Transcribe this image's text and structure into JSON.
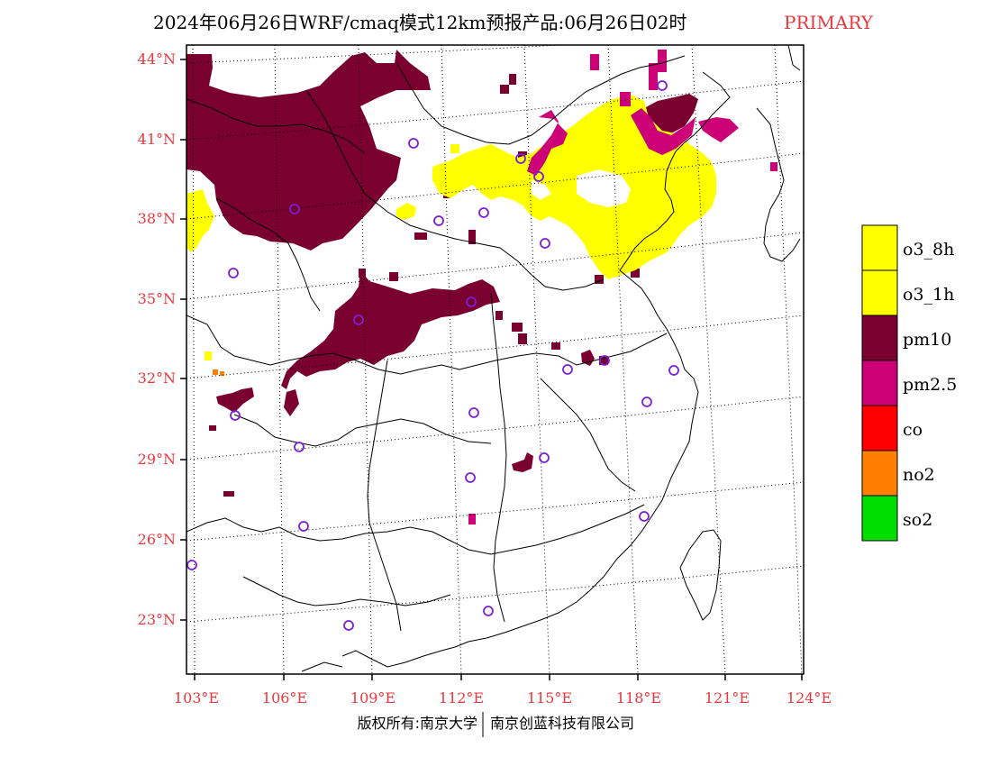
{
  "title": {
    "main": "2024年06月26日WRF/cmaq模式12km预报产品:06月26日02时",
    "tag": "PRIMARY",
    "tag_color": "#e8383d"
  },
  "map": {
    "lat_labels": [
      "44°N",
      "41°N",
      "38°N",
      "35°N",
      "32°N",
      "29°N",
      "26°N",
      "23°N"
    ],
    "lon_labels": [
      "103°E",
      "106°E",
      "109°E",
      "112°E",
      "115°E",
      "118°E",
      "121°E",
      "124°E"
    ],
    "label_color": "#e8383d",
    "station_color": "#7b1fd9"
  },
  "legend": {
    "items": [
      {
        "label": "o3_8h",
        "color": "#ffff00"
      },
      {
        "label": "o3_1h",
        "color": "#ffff00"
      },
      {
        "label": "pm10",
        "color": "#7a0030"
      },
      {
        "label": "pm2.5",
        "color": "#cc0077"
      },
      {
        "label": "co",
        "color": "#ff0000"
      },
      {
        "label": "no2",
        "color": "#ff8000"
      },
      {
        "label": "so2",
        "color": "#00dd00"
      }
    ]
  },
  "colors": {
    "pm10": "#7a0030",
    "pm25": "#cc0077",
    "o3": "#ffff00",
    "no2": "#ff8000"
  },
  "footer": {
    "copyright_left": "版权所有:南京大学",
    "copyright_right": "南京创蓝科技有限公司"
  }
}
